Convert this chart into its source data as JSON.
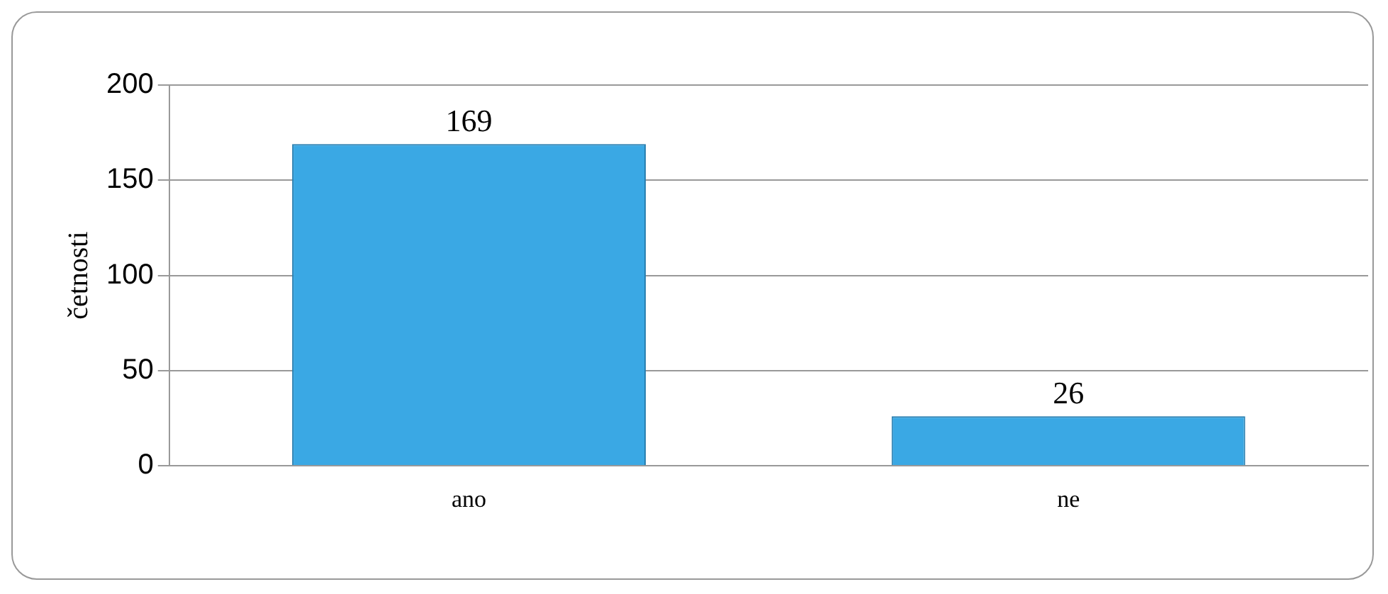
{
  "chart_data": {
    "type": "bar",
    "ylabel": "četnosti",
    "categories": [
      "ano",
      "ne"
    ],
    "values": [
      169,
      26
    ],
    "color": "#3aa8e4",
    "ylim": [
      0,
      200
    ],
    "yticks": [
      0,
      50,
      100,
      150,
      200
    ],
    "grid": "y",
    "data_labels": true,
    "legend": false
  }
}
